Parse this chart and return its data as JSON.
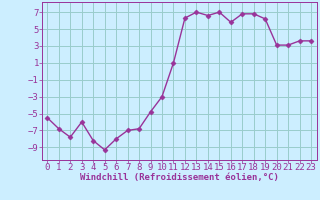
{
  "x": [
    0,
    1,
    2,
    3,
    4,
    5,
    6,
    7,
    8,
    9,
    10,
    11,
    12,
    13,
    14,
    15,
    16,
    17,
    18,
    19,
    20,
    21,
    22,
    23
  ],
  "y": [
    -5.5,
    -6.8,
    -7.8,
    -6.0,
    -8.2,
    -9.3,
    -8.0,
    -7.0,
    -6.8,
    -4.8,
    -3.0,
    1.0,
    6.3,
    7.0,
    6.6,
    7.0,
    5.8,
    6.8,
    6.8,
    6.2,
    3.1,
    3.1,
    3.6,
    3.6
  ],
  "line_color": "#993399",
  "marker": "D",
  "marker_size": 2.5,
  "bg_color": "#cceeff",
  "grid_color": "#99cccc",
  "xlabel": "Windchill (Refroidissement éolien,°C)",
  "ylabel": "",
  "yticks": [
    -9,
    -7,
    -5,
    -3,
    -1,
    1,
    3,
    5,
    7
  ],
  "xticks": [
    0,
    1,
    2,
    3,
    4,
    5,
    6,
    7,
    8,
    9,
    10,
    11,
    12,
    13,
    14,
    15,
    16,
    17,
    18,
    19,
    20,
    21,
    22,
    23
  ],
  "xlim": [
    -0.5,
    23.5
  ],
  "ylim": [
    -10.5,
    8.2
  ],
  "tick_label_color": "#993399",
  "axis_color": "#993399",
  "xlabel_fontsize": 6.5,
  "tick_fontsize": 6.5,
  "line_width": 1.0
}
